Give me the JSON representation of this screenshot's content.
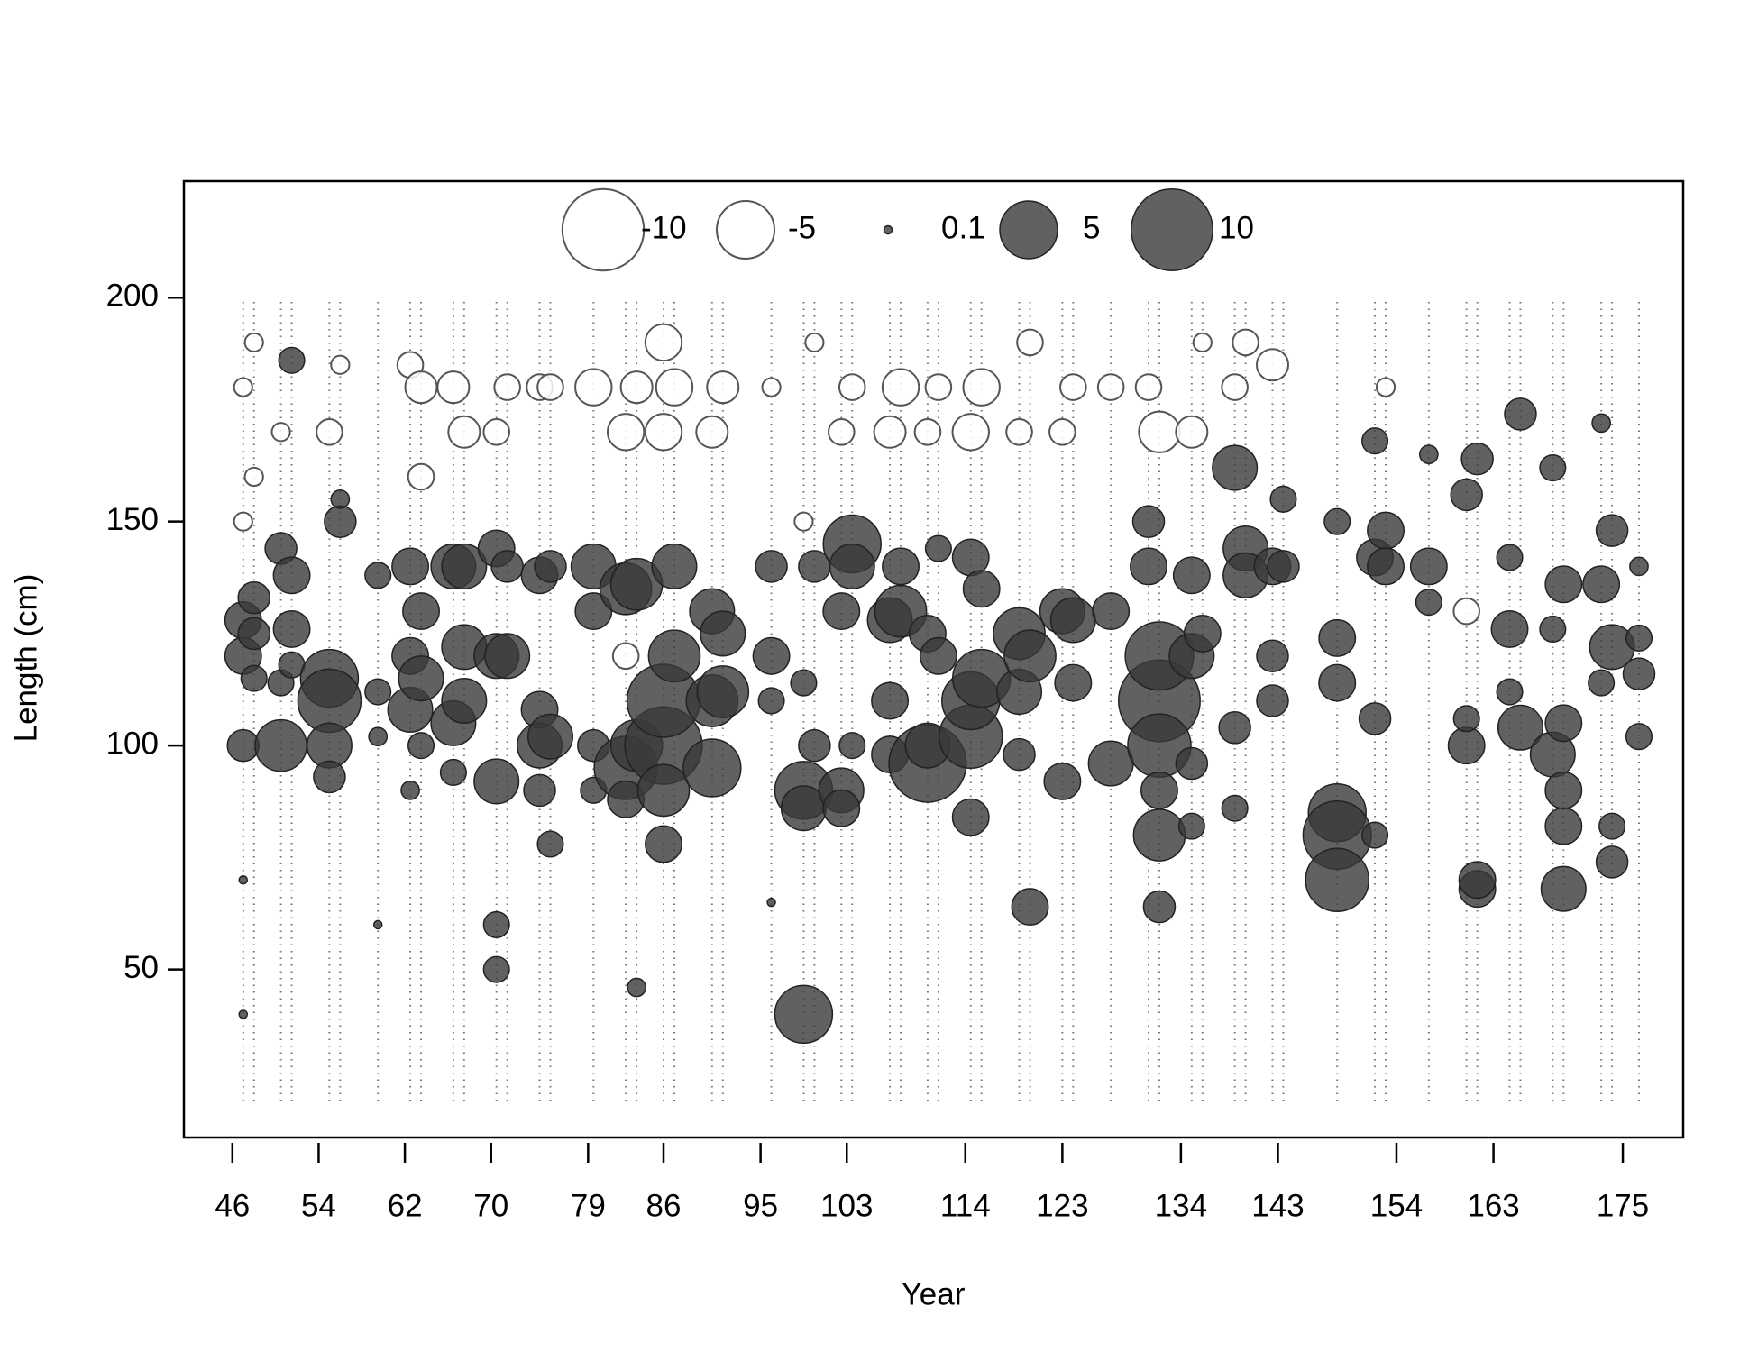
{
  "chart_data": {
    "type": "bubble",
    "x_label": "Year",
    "y_label": "Length (cm)",
    "xlim": [
      41.5,
      180.6
    ],
    "ylim": [
      12.5,
      226
    ],
    "xticks": [
      46,
      54,
      62,
      70,
      79,
      86,
      95,
      103,
      114,
      123,
      134,
      143,
      154,
      163,
      175
    ],
    "yticks": [
      50,
      100,
      150,
      200
    ],
    "colors": {
      "positive": "#3a3a3a",
      "negative": "#ffffff"
    },
    "legend": {
      "position": "top",
      "values": [
        -10,
        -5,
        0.1,
        5,
        10
      ]
    },
    "columns": [
      {
        "x": 47,
        "y": [
          128,
          120,
          100,
          150,
          180,
          70,
          40
        ],
        "size": [
          2,
          2,
          1.5,
          -0.5,
          -0.5,
          0.1,
          0.1
        ]
      },
      {
        "x": 48,
        "y": [
          133,
          125,
          115,
          160,
          190
        ],
        "size": [
          1.5,
          1.5,
          1,
          -0.5,
          -0.5
        ]
      },
      {
        "x": 50.5,
        "y": [
          144,
          100,
          114,
          170
        ],
        "size": [
          1.5,
          4,
          1,
          -0.5
        ]
      },
      {
        "x": 51.5,
        "y": [
          138,
          126,
          186,
          118
        ],
        "size": [
          2,
          2,
          1,
          1
        ]
      },
      {
        "x": 55,
        "y": [
          115,
          110,
          100,
          93,
          170
        ],
        "size": [
          5,
          6,
          3,
          1.5,
          -1
        ]
      },
      {
        "x": 56,
        "y": [
          150,
          155,
          185
        ],
        "size": [
          1.5,
          0.5,
          -0.5
        ]
      },
      {
        "x": 59.5,
        "y": [
          138,
          112,
          102,
          60
        ],
        "size": [
          1,
          1,
          0.5,
          0.1
        ]
      },
      {
        "x": 62.5,
        "y": [
          140,
          108,
          120,
          185,
          90
        ],
        "size": [
          2,
          3,
          2,
          -1,
          0.5
        ]
      },
      {
        "x": 63.5,
        "y": [
          130,
          115,
          100,
          180,
          160
        ],
        "size": [
          2,
          3,
          1,
          -1.5,
          -1
        ]
      },
      {
        "x": 66.5,
        "y": [
          140,
          105,
          180,
          94
        ],
        "size": [
          3,
          3,
          -1.5,
          1
        ]
      },
      {
        "x": 67.5,
        "y": [
          140,
          122,
          110,
          170
        ],
        "size": [
          3,
          3,
          3,
          -1.5
        ]
      },
      {
        "x": 70.5,
        "y": [
          144,
          92,
          120,
          60,
          50,
          170
        ],
        "size": [
          2,
          3,
          3,
          1,
          1,
          -1
        ]
      },
      {
        "x": 71.5,
        "y": [
          120,
          140,
          180
        ],
        "size": [
          3,
          1.5,
          -1
        ]
      },
      {
        "x": 74.5,
        "y": [
          138,
          108,
          100,
          90,
          180
        ],
        "size": [
          2,
          2,
          3,
          1.5,
          -1
        ]
      },
      {
        "x": 75.5,
        "y": [
          140,
          102,
          78,
          180
        ],
        "size": [
          1.5,
          3,
          1,
          -1
        ]
      },
      {
        "x": 79.5,
        "y": [
          140,
          130,
          100,
          90,
          180
        ],
        "size": [
          3,
          2,
          1.5,
          1,
          -2
        ]
      },
      {
        "x": 82.5,
        "y": [
          135,
          95,
          88,
          170,
          120
        ],
        "size": [
          4,
          6,
          2,
          -2,
          -1
        ]
      },
      {
        "x": 83.5,
        "y": [
          136,
          100,
          46,
          180
        ],
        "size": [
          4,
          4,
          0.5,
          -1.5
        ]
      },
      {
        "x": 86,
        "y": [
          100,
          110,
          90,
          78,
          170,
          190
        ],
        "size": [
          9,
          8,
          4,
          2,
          -2,
          -2
        ]
      },
      {
        "x": 87,
        "y": [
          140,
          120,
          180
        ],
        "size": [
          3,
          4,
          -2
        ]
      },
      {
        "x": 90.5,
        "y": [
          130,
          95,
          110,
          170
        ],
        "size": [
          3,
          5,
          4,
          -1.5
        ]
      },
      {
        "x": 91.5,
        "y": [
          125,
          112,
          180
        ],
        "size": [
          3,
          4,
          -1.5
        ]
      },
      {
        "x": 96,
        "y": [
          140,
          120,
          110,
          180,
          65
        ],
        "size": [
          1.5,
          2,
          1,
          -0.5,
          0.1
        ]
      },
      {
        "x": 99,
        "y": [
          90,
          40,
          86,
          114,
          150
        ],
        "size": [
          5,
          5,
          3,
          1,
          -0.5
        ]
      },
      {
        "x": 100,
        "y": [
          140,
          100,
          190
        ],
        "size": [
          1.5,
          1.5,
          -0.5
        ]
      },
      {
        "x": 102.5,
        "y": [
          130,
          90,
          86,
          170
        ],
        "size": [
          2,
          3,
          2,
          -1
        ]
      },
      {
        "x": 103.5,
        "y": [
          145,
          140,
          100,
          180
        ],
        "size": [
          5,
          3,
          1,
          -1
        ]
      },
      {
        "x": 107,
        "y": [
          128,
          110,
          98,
          170
        ],
        "size": [
          3,
          2,
          2,
          -1.5
        ]
      },
      {
        "x": 108,
        "y": [
          130,
          140,
          180
        ],
        "size": [
          4,
          2,
          -2
        ]
      },
      {
        "x": 110.5,
        "y": [
          96,
          100,
          125,
          170
        ],
        "size": [
          9,
          3,
          2,
          -1
        ]
      },
      {
        "x": 111.5,
        "y": [
          120,
          144,
          180
        ],
        "size": [
          2,
          1,
          -1
        ]
      },
      {
        "x": 114.5,
        "y": [
          102,
          110,
          84,
          142,
          170
        ],
        "size": [
          6,
          5,
          2,
          2,
          -2
        ]
      },
      {
        "x": 115.5,
        "y": [
          115,
          135,
          180
        ],
        "size": [
          5,
          2,
          -2
        ]
      },
      {
        "x": 119,
        "y": [
          125,
          112,
          98,
          170
        ],
        "size": [
          4,
          3,
          1.5,
          -1
        ]
      },
      {
        "x": 120,
        "y": [
          120,
          64,
          190
        ],
        "size": [
          4,
          2,
          -1
        ]
      },
      {
        "x": 123,
        "y": [
          130,
          92,
          170
        ],
        "size": [
          3,
          2,
          -1
        ]
      },
      {
        "x": 124,
        "y": [
          128,
          114,
          180
        ],
        "size": [
          3,
          2,
          -1
        ]
      },
      {
        "x": 127.5,
        "y": [
          96,
          130,
          180
        ],
        "size": [
          3,
          2,
          -1
        ]
      },
      {
        "x": 131,
        "y": [
          140,
          150,
          180
        ],
        "size": [
          2,
          1.5,
          -1
        ]
      },
      {
        "x": 132,
        "y": [
          110,
          120,
          100,
          80,
          90,
          64,
          170
        ],
        "size": [
          10,
          7,
          6,
          4,
          2,
          1.5,
          -2.5
        ]
      },
      {
        "x": 135,
        "y": [
          138,
          120,
          96,
          82,
          170
        ],
        "size": [
          2,
          3,
          1.5,
          1,
          -1.5
        ]
      },
      {
        "x": 136,
        "y": [
          125,
          190
        ],
        "size": [
          2,
          -0.5
        ]
      },
      {
        "x": 139,
        "y": [
          162,
          104,
          86,
          180
        ],
        "size": [
          3,
          1.5,
          1,
          -1
        ]
      },
      {
        "x": 140,
        "y": [
          144,
          138,
          190
        ],
        "size": [
          3,
          3,
          -1
        ]
      },
      {
        "x": 142.5,
        "y": [
          140,
          120,
          110,
          185
        ],
        "size": [
          2,
          1.5,
          1.5,
          -1.5
        ]
      },
      {
        "x": 143.5,
        "y": [
          140,
          155
        ],
        "size": [
          1.5,
          1
        ]
      },
      {
        "x": 148.5,
        "y": [
          85,
          80,
          70,
          124,
          114,
          150
        ],
        "size": [
          5,
          7,
          6,
          2,
          2,
          1
        ]
      },
      {
        "x": 152,
        "y": [
          142,
          106,
          80,
          168
        ],
        "size": [
          2,
          1.5,
          1,
          1
        ]
      },
      {
        "x": 153,
        "y": [
          148,
          140,
          180
        ],
        "size": [
          2,
          2,
          -0.5
        ]
      },
      {
        "x": 157,
        "y": [
          140,
          132,
          165
        ],
        "size": [
          2,
          1,
          0.5
        ]
      },
      {
        "x": 160.5,
        "y": [
          100,
          156,
          106,
          130
        ],
        "size": [
          2,
          1.5,
          1,
          -1
        ]
      },
      {
        "x": 161.5,
        "y": [
          68,
          70,
          164
        ],
        "size": [
          2,
          2,
          1.5
        ]
      },
      {
        "x": 164.5,
        "y": [
          126,
          142,
          112
        ],
        "size": [
          2,
          1,
          1
        ]
      },
      {
        "x": 165.5,
        "y": [
          104,
          174
        ],
        "size": [
          3,
          1.5
        ]
      },
      {
        "x": 168.5,
        "y": [
          98,
          126,
          162
        ],
        "size": [
          3,
          1,
          1
        ]
      },
      {
        "x": 169.5,
        "y": [
          68,
          82,
          90,
          136,
          105
        ],
        "size": [
          3,
          2,
          2,
          2,
          2
        ]
      },
      {
        "x": 173,
        "y": [
          136,
          114,
          172
        ],
        "size": [
          2,
          1,
          0.5
        ]
      },
      {
        "x": 174,
        "y": [
          122,
          74,
          148,
          82
        ],
        "size": [
          3,
          1.5,
          1.5,
          1
        ]
      },
      {
        "x": 176.5,
        "y": [
          116,
          102,
          124,
          140
        ],
        "size": [
          1.5,
          1,
          1,
          0.5
        ]
      }
    ]
  }
}
